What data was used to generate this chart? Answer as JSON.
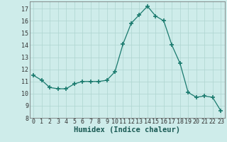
{
  "x": [
    0,
    1,
    2,
    3,
    4,
    5,
    6,
    7,
    8,
    9,
    10,
    11,
    12,
    13,
    14,
    15,
    16,
    17,
    18,
    19,
    20,
    21,
    22,
    23
  ],
  "y": [
    11.5,
    11.1,
    10.5,
    10.4,
    10.4,
    10.8,
    11.0,
    11.0,
    11.0,
    11.1,
    11.8,
    14.1,
    15.8,
    16.5,
    17.2,
    16.4,
    16.0,
    14.0,
    12.5,
    10.1,
    9.7,
    9.8,
    9.7,
    8.6
  ],
  "xlabel": "Humidex (Indice chaleur)",
  "xlim": [
    -0.5,
    23.5
  ],
  "ylim": [
    8,
    17.6
  ],
  "yticks": [
    8,
    9,
    10,
    11,
    12,
    13,
    14,
    15,
    16,
    17
  ],
  "xticks": [
    0,
    1,
    2,
    3,
    4,
    5,
    6,
    7,
    8,
    9,
    10,
    11,
    12,
    13,
    14,
    15,
    16,
    17,
    18,
    19,
    20,
    21,
    22,
    23
  ],
  "line_color": "#1a7a6e",
  "marker_color": "#1a7a6e",
  "bg_color": "#ceecea",
  "grid_color": "#aed4d0",
  "xlabel_fontsize": 7.5,
  "tick_fontsize": 6.0
}
